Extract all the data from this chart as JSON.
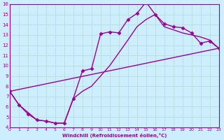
{
  "xlabel": "Windchill (Refroidissement éolien,°C)",
  "ylabel": "",
  "background_color": "#cceeff",
  "grid_color": "#b8ddd8",
  "line_color": "#990099",
  "xlim": [
    0,
    23
  ],
  "ylim": [
    4,
    16
  ],
  "xticks": [
    0,
    1,
    2,
    3,
    4,
    5,
    6,
    7,
    8,
    9,
    10,
    11,
    12,
    13,
    14,
    15,
    16,
    17,
    18,
    19,
    20,
    21,
    22,
    23
  ],
  "yticks": [
    4,
    5,
    6,
    7,
    8,
    9,
    10,
    11,
    12,
    13,
    14,
    15,
    16
  ],
  "curve1_x": [
    0,
    1,
    2,
    3,
    4,
    5,
    6,
    7,
    8,
    9,
    10,
    11,
    12,
    13,
    14,
    15,
    16,
    17,
    18,
    19,
    20,
    21,
    22,
    23
  ],
  "curve1_y": [
    7.5,
    6.2,
    5.3,
    4.7,
    4.6,
    4.4,
    4.4,
    6.8,
    9.5,
    9.7,
    13.1,
    13.3,
    13.2,
    14.5,
    15.1,
    16.2,
    15.0,
    14.1,
    13.8,
    13.7,
    13.2,
    12.2,
    12.4,
    11.7
  ],
  "curve2_x": [
    0,
    1,
    3,
    4,
    5,
    6,
    7,
    8,
    9,
    10,
    11,
    13,
    14,
    15,
    16,
    17,
    18,
    19,
    20,
    21,
    22,
    23
  ],
  "curve2_y": [
    7.5,
    6.2,
    4.7,
    4.6,
    4.4,
    4.4,
    6.8,
    7.5,
    8.0,
    9.0,
    10.0,
    12.5,
    13.8,
    14.5,
    15.0,
    13.8,
    13.5,
    13.2,
    13.0,
    12.8,
    12.5,
    11.7
  ],
  "curve3_x": [
    0,
    23
  ],
  "curve3_y": [
    7.5,
    11.7
  ],
  "marker": "D",
  "markersize": 2.5,
  "linewidth": 1.0
}
